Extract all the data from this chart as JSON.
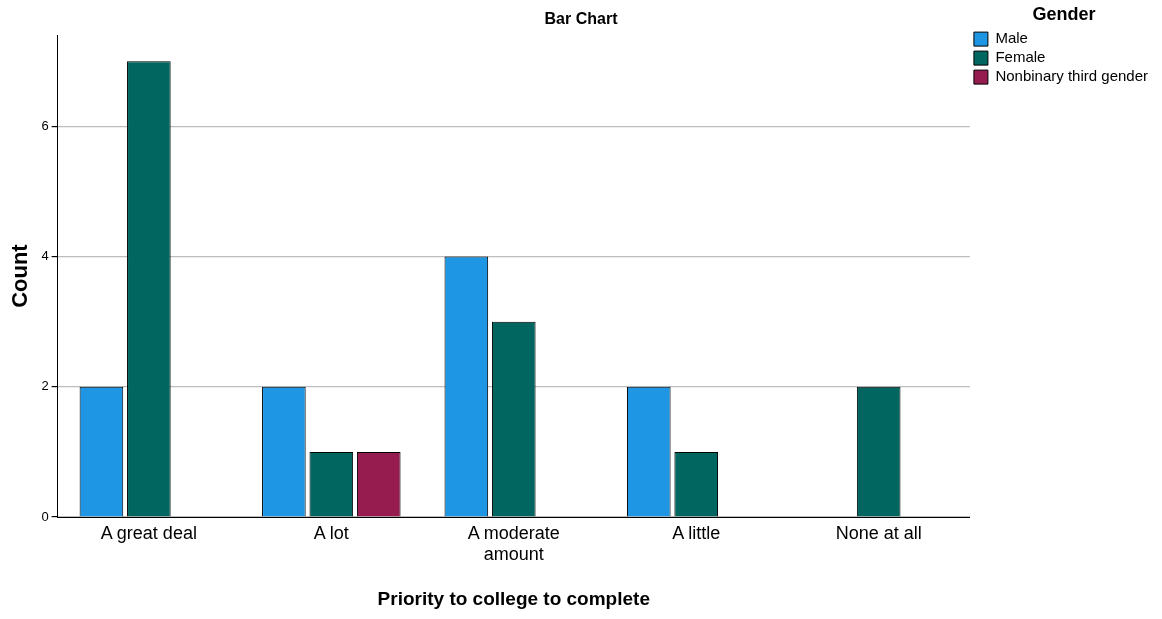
{
  "chart_data": {
    "type": "bar",
    "title": "Bar Chart",
    "xlabel": "Priority to college to complete",
    "ylabel": "Count",
    "legend_title": "Gender",
    "categories": [
      "A great deal",
      "A lot",
      "A moderate amount",
      "A little",
      "None at all"
    ],
    "series": [
      {
        "name": "Male",
        "color": "#1f96e4",
        "values": [
          2,
          2,
          4,
          2,
          null
        ]
      },
      {
        "name": "Female",
        "color": "#00665f",
        "values": [
          7,
          1,
          3,
          1,
          2
        ]
      },
      {
        "name": "Nonbinary third gender",
        "color": "#961b4e",
        "values": [
          null,
          1,
          null,
          null,
          null
        ]
      }
    ],
    "ylim": [
      0,
      7.4
    ],
    "yticks": [
      0,
      2,
      4,
      6
    ],
    "grid": "y",
    "legend": "top right"
  }
}
